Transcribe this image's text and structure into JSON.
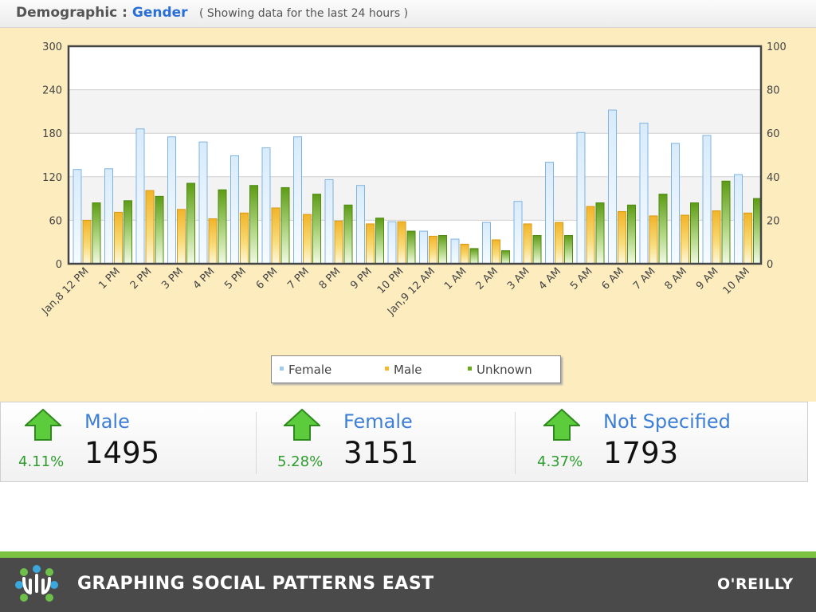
{
  "header": {
    "label": "Demographic :",
    "value": "Gender",
    "note": "( Showing data for the last 24 hours )"
  },
  "chart_data": {
    "type": "bar",
    "categories": [
      "Jan,8 12 PM",
      "1 PM",
      "2 PM",
      "3 PM",
      "4 PM",
      "5 PM",
      "6 PM",
      "7 PM",
      "8 PM",
      "9 PM",
      "10 PM",
      "Jan,9 12 AM",
      "1 AM",
      "2 AM",
      "3 AM",
      "4 AM",
      "5 AM",
      "6 AM",
      "7 AM",
      "8 AM",
      "9 AM",
      "10 AM"
    ],
    "series": [
      {
        "name": "Female",
        "axis": "left",
        "values": [
          130,
          131,
          186,
          175,
          168,
          149,
          160,
          175,
          116,
          108,
          58,
          45,
          34,
          57,
          86,
          140,
          181,
          212,
          194,
          166,
          177,
          123
        ]
      },
      {
        "name": "Male",
        "axis": "left",
        "values": [
          60,
          71,
          101,
          75,
          62,
          70,
          77,
          68,
          59,
          55,
          58,
          38,
          27,
          33,
          55,
          57,
          79,
          72,
          66,
          67,
          73,
          70
        ]
      },
      {
        "name": "Unknown",
        "axis": "right",
        "values": [
          28,
          29,
          31,
          37,
          34,
          36,
          35,
          32,
          27,
          21,
          15,
          13,
          7,
          6,
          13,
          13,
          28,
          27,
          32,
          28,
          38,
          30
        ]
      }
    ],
    "ylim_left": [
      0,
      300
    ],
    "yticks_left": [
      "300",
      "240",
      "180",
      "120",
      "60",
      "0"
    ],
    "ylim_right": [
      0,
      100
    ],
    "yticks_right": [
      "100",
      "80",
      "60",
      "40",
      "20",
      "0"
    ],
    "legend_position": "bottom-center",
    "colors": {
      "Female": "#b9d9f4",
      "Male": "#f4b92c",
      "Unknown": "#6aab1e"
    }
  },
  "legend": {
    "female": "Female",
    "male": "Male",
    "unknown": "Unknown"
  },
  "stats": [
    {
      "label": "Male",
      "value": "1495",
      "pct": "4.11%",
      "trend": "up-arrow-icon"
    },
    {
      "label": "Female",
      "value": "3151",
      "pct": "5.28%",
      "trend": "up-arrow-icon"
    },
    {
      "label": "Not Specified",
      "value": "1793",
      "pct": "4.37%",
      "trend": "up-arrow-icon"
    }
  ],
  "footer": {
    "title": "GRAPHING SOCIAL PATTERNS EAST",
    "publisher": "O'REILLY",
    "accent": "#7cc242"
  }
}
